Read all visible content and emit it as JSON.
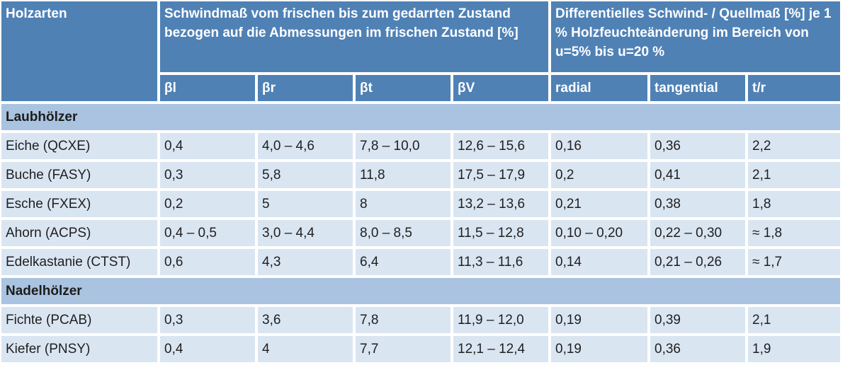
{
  "table": {
    "header_top": {
      "col0": "Holzarten",
      "group1": "Schwindmaß vom frischen bis zum gedarrten Zustand bezogen auf die Abmessungen im frischen Zustand [%]",
      "group2": "Differentielles Schwind- / Quellmaß [%] je 1 % Holzfeuchteänderung im Bereich von u=5% bis u=20 %"
    },
    "header_sub": [
      "βl",
      "βr",
      "βt",
      "βV",
      "radial",
      "tangential",
      "t/r"
    ],
    "groups": [
      {
        "label": "Laubhölzer",
        "rows": [
          [
            "Eiche (QCXE)",
            "0,4",
            "4,0  –  4,6",
            "7,8 – 10,0",
            "12,6 – 15,6",
            "0,16",
            "0,36",
            "2,2"
          ],
          [
            "Buche (FASY)",
            "0,3",
            "5,8",
            "11,8",
            "17,5 – 17,9",
            "0,2",
            "0,41",
            "2,1"
          ],
          [
            "Esche (FXEX)",
            "0,2",
            "5",
            "8",
            "13,2 – 13,6",
            "0,21",
            "0,38",
            "1,8"
          ],
          [
            "Ahorn (ACPS)",
            "0,4 – 0,5",
            "3,0 – 4,4",
            "8,0 – 8,5",
            "11,5 – 12,8",
            "0,10 – 0,20",
            "0,22 – 0,30",
            "≈ 1,8"
          ],
          [
            "Edelkastanie (CTST)",
            "0,6",
            "4,3",
            "6,4",
            "11,3 – 11,6",
            "0,14",
            "0,21 – 0,26",
            "≈ 1,7"
          ]
        ]
      },
      {
        "label": "Nadelhölzer",
        "rows": [
          [
            "Fichte (PCAB)",
            "0,3",
            "3,6",
            "7,8",
            "11,9  – 12,0",
            "0,19",
            "0,39",
            "2,1"
          ],
          [
            "Kiefer (PNSY)",
            "0,4",
            "4",
            "7,7",
            "12,1 – 12,4",
            "0,19",
            "0,36",
            "1,9"
          ]
        ]
      }
    ]
  }
}
